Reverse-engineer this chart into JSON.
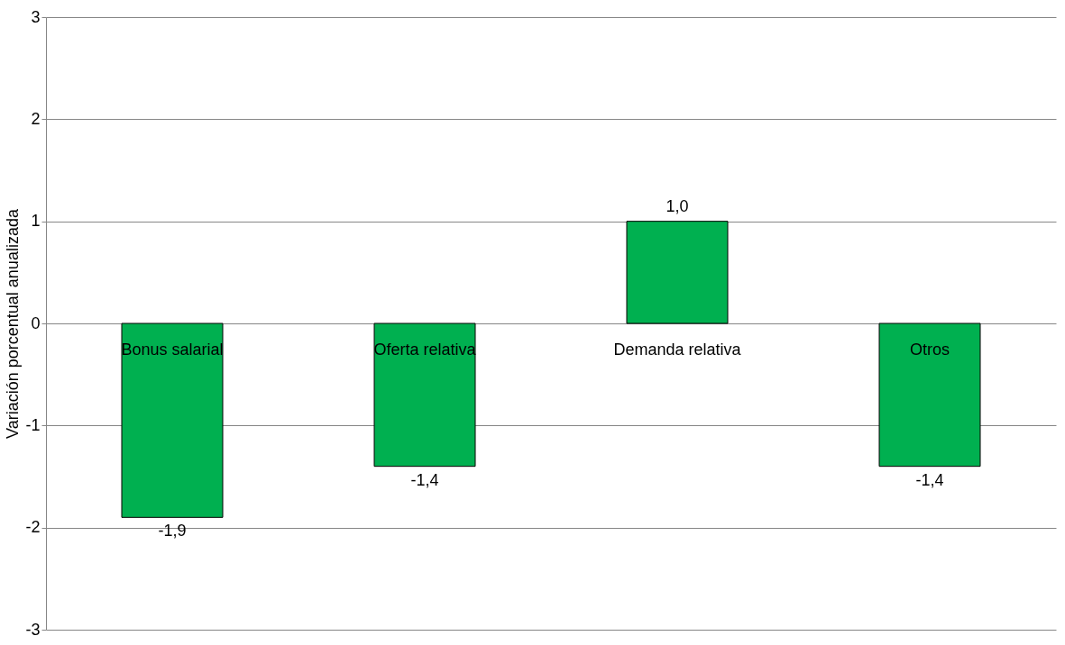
{
  "chart_data": {
    "type": "bar",
    "ylabel": "Variación porcentual anualizada",
    "categories": [
      "Bonus salarial",
      "Oferta relativa",
      "Demanda relativa",
      "Otros"
    ],
    "values": [
      -1.9,
      -1.4,
      1.0,
      -1.4
    ],
    "value_labels": [
      "-1,9",
      "-1,4",
      "1,0",
      "-1,4"
    ],
    "color": "#00b050",
    "ylim": [
      -3,
      3
    ],
    "yticks": [
      -3,
      -2,
      -1,
      0,
      1,
      2,
      3
    ],
    "grid": "y"
  }
}
